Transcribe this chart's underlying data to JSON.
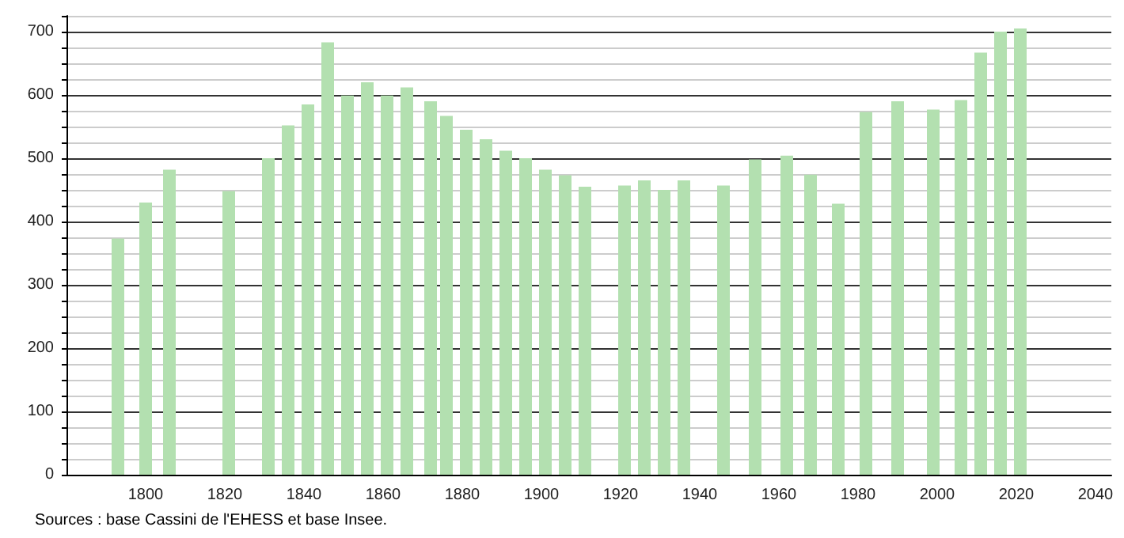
{
  "chart_data": {
    "type": "bar",
    "x": [
      1793,
      1800,
      1806,
      1821,
      1831,
      1836,
      1841,
      1846,
      1851,
      1856,
      1861,
      1866,
      1872,
      1876,
      1881,
      1886,
      1891,
      1896,
      1901,
      1906,
      1911,
      1921,
      1926,
      1931,
      1936,
      1946,
      1954,
      1962,
      1968,
      1975,
      1982,
      1990,
      1999,
      2006,
      2011,
      2016,
      2021
    ],
    "values": [
      373,
      430,
      482,
      448,
      500,
      552,
      585,
      683,
      599,
      620,
      599,
      612,
      590,
      567,
      545,
      530,
      512,
      500,
      482,
      473,
      455,
      457,
      465,
      450,
      465,
      457,
      498,
      504,
      474,
      428,
      573,
      590,
      577,
      592,
      667,
      700,
      705
    ],
    "color": "#b3e0b0",
    "xlim": [
      1780,
      2044
    ],
    "xticks": [
      1800,
      1820,
      1840,
      1860,
      1880,
      1900,
      1920,
      1940,
      1960,
      1980,
      2000,
      2020,
      2040
    ],
    "ylim": [
      0,
      725
    ],
    "yticks": [
      0,
      {
        "value": 25,
        "label": null
      },
      {
        "value": 50,
        "label": null
      },
      {
        "value": 75,
        "label": null
      },
      100,
      {
        "value": 125,
        "label": null
      },
      {
        "value": 150,
        "label": null
      },
      {
        "value": 175,
        "label": null
      },
      200,
      {
        "value": 225,
        "label": null
      },
      {
        "value": 250,
        "label": null
      },
      {
        "value": 275,
        "label": null
      },
      300,
      {
        "value": 325,
        "label": null
      },
      {
        "value": 350,
        "label": null
      },
      {
        "value": 375,
        "label": null
      },
      400,
      {
        "value": 425,
        "label": null
      },
      {
        "value": 450,
        "label": null
      },
      {
        "value": 475,
        "label": null
      },
      500,
      {
        "value": 525,
        "label": null
      },
      {
        "value": 550,
        "label": null
      },
      {
        "value": 575,
        "label": null
      },
      600,
      {
        "value": 625,
        "label": null
      },
      {
        "value": 650,
        "label": null
      },
      {
        "value": 675,
        "label": null
      },
      700,
      {
        "value": 725,
        "label": null
      }
    ],
    "grid": "y",
    "annotations": [
      "Sources : base Cassini de l'EHESS et base Insee."
    ]
  }
}
